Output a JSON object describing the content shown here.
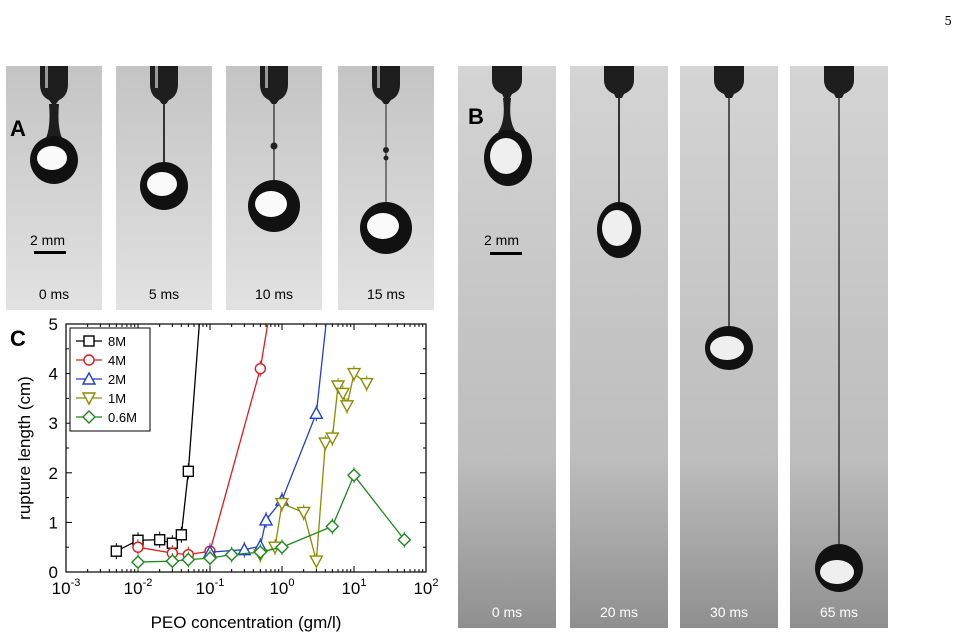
{
  "page_number": "5",
  "panel_a": {
    "letter": "A",
    "scale_bar": "2 mm",
    "frames": [
      "0 ms",
      "5 ms",
      "10 ms",
      "15 ms"
    ]
  },
  "panel_b": {
    "letter": "B",
    "scale_bar": "2 mm",
    "frames": [
      "0 ms",
      "20 ms",
      "30 ms",
      "65 ms"
    ]
  },
  "panel_c": {
    "letter": "C"
  },
  "chart_data": {
    "type": "scatter",
    "xlabel": "PEO concentration (gm/l)",
    "ylabel": "rupture length (cm)",
    "x_scale": "log",
    "xlim": [
      0.001,
      100
    ],
    "ylim": [
      0,
      5
    ],
    "x_ticks": [
      0.001,
      0.01,
      0.1,
      1,
      10,
      100
    ],
    "x_tick_labels": [
      {
        "base": "10",
        "exp": "-3"
      },
      {
        "base": "10",
        "exp": "-2"
      },
      {
        "base": "10",
        "exp": "-1"
      },
      {
        "base": "10",
        "exp": "0"
      },
      {
        "base": "10",
        "exp": "1"
      },
      {
        "base": "10",
        "exp": "2"
      }
    ],
    "y_ticks": [
      0,
      1,
      2,
      3,
      4,
      5
    ],
    "legend_position": "top-left",
    "series": [
      {
        "name": "8M",
        "marker": "square",
        "color": "#000000",
        "x": [
          0.005,
          0.01,
          0.02,
          0.03,
          0.04,
          0.05
        ],
        "y": [
          0.42,
          0.64,
          0.65,
          0.58,
          0.75,
          2.03
        ],
        "continues_above": true
      },
      {
        "name": "4M",
        "marker": "circle",
        "color": "#e31a1c",
        "x": [
          0.01,
          0.03,
          0.05,
          0.1,
          0.5
        ],
        "y": [
          0.5,
          0.38,
          0.35,
          0.42,
          4.1
        ],
        "continues_above": true
      },
      {
        "name": "2M",
        "marker": "triangle-up",
        "color": "#1f3fd6",
        "x": [
          0.1,
          0.3,
          0.5,
          0.6,
          1.0,
          3.0
        ],
        "y": [
          0.4,
          0.45,
          0.52,
          1.05,
          1.45,
          3.2
        ],
        "continues_above": true
      },
      {
        "name": "1M",
        "marker": "triangle-down",
        "color": "#8c8c00",
        "x": [
          0.5,
          0.8,
          1.0,
          2.0,
          3.0,
          4.0,
          5.0,
          6.0,
          7.0,
          8.0,
          10.0,
          15.0
        ],
        "y": [
          0.35,
          0.5,
          1.38,
          1.2,
          0.22,
          2.6,
          2.7,
          3.75,
          3.6,
          3.35,
          4.0,
          3.8
        ]
      },
      {
        "name": "0.6M",
        "marker": "diamond",
        "color": "#1a8a1a",
        "x": [
          0.01,
          0.03,
          0.05,
          0.1,
          0.2,
          0.5,
          1.0,
          5.0,
          10.0,
          50.0
        ],
        "y": [
          0.2,
          0.22,
          0.25,
          0.28,
          0.35,
          0.4,
          0.5,
          0.92,
          1.95,
          0.65
        ]
      }
    ]
  }
}
